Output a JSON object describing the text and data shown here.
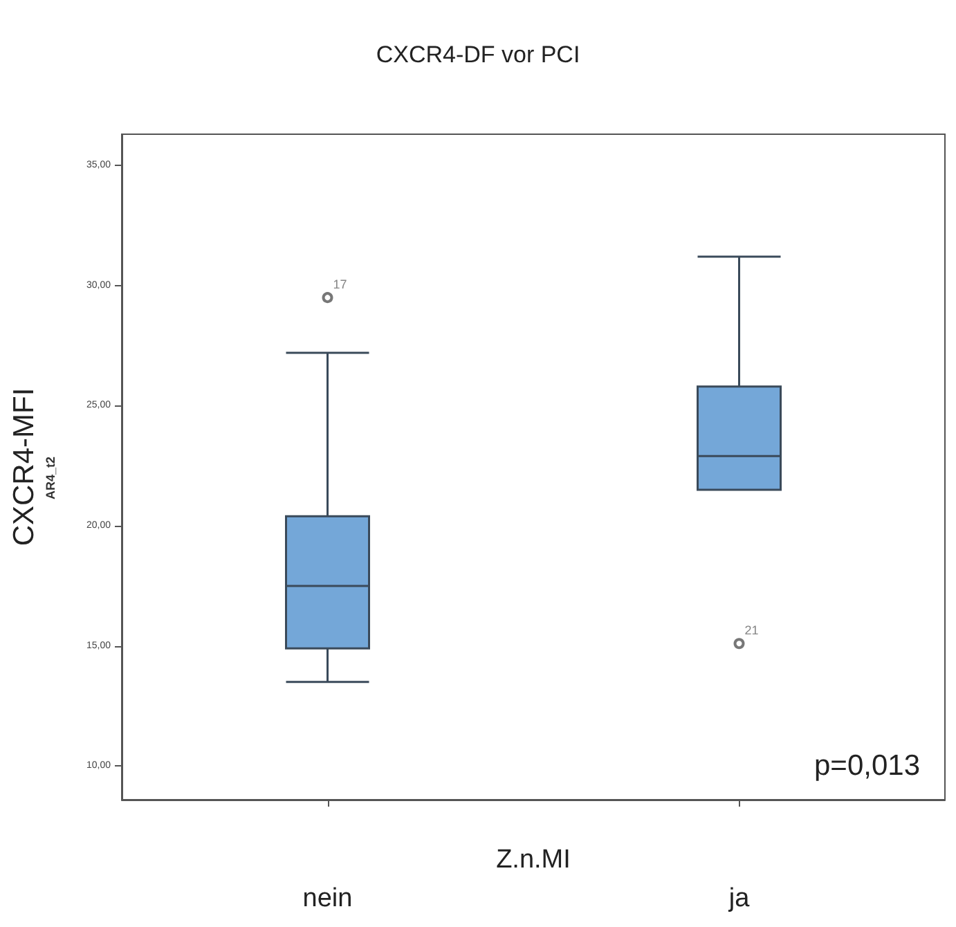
{
  "chart_data": {
    "type": "box",
    "title": "CXCR4-DF vor PCI",
    "xlabel": "Z.n.MI",
    "ylabel": "CXCR4-MFI",
    "categories": [
      "nein",
      "ja"
    ],
    "series": [
      {
        "color": "#74a7d8",
        "boxes": [
          {
            "low": 13.5,
            "q1": 14.9,
            "median": 17.5,
            "q3": 20.4,
            "high": 27.2,
            "outliers": [
              29.5
            ]
          },
          {
            "low": 21.5,
            "q1": 21.5,
            "median": 22.9,
            "q3": 25.8,
            "high": 31.2,
            "outliers": [
              15.1
            ]
          }
        ]
      }
    ],
    "ylim": [
      8.6,
      36.3
    ],
    "yticks": [
      {
        "value": 10,
        "label": "10,00"
      },
      {
        "value": 15,
        "label": "15,00"
      },
      {
        "value": 20,
        "label": "20,00"
      },
      {
        "value": 25,
        "label": "25,00"
      },
      {
        "value": 30,
        "label": "30,00"
      },
      {
        "value": 35,
        "label": "35,00"
      }
    ],
    "grid": false,
    "marker": "circle",
    "annotations": [
      "AR4_t2",
      "p=0,013",
      "17",
      "21"
    ]
  }
}
